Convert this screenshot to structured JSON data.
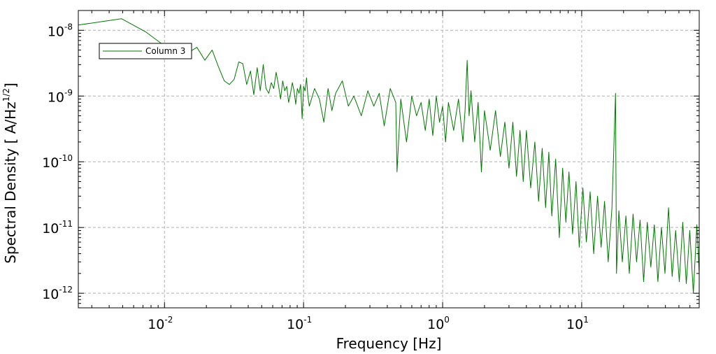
{
  "chart_data": {
    "type": "line",
    "title": "",
    "xlabel": "Frequency [Hz]",
    "ylabel_main": "Spectral Density [ A/Hz",
    "ylabel_sup": "1/2",
    "ylabel_end": "]",
    "xscale": "log",
    "yscale": "log",
    "xlim": [
      0.0024,
      70
    ],
    "ylim": [
      6e-13,
      2e-08
    ],
    "x_ticks": [
      {
        "value": 0.01,
        "base": "10",
        "exp": "-2"
      },
      {
        "value": 0.1,
        "base": "10",
        "exp": "-1"
      },
      {
        "value": 1,
        "base": "10",
        "exp": "0"
      },
      {
        "value": 10,
        "base": "10",
        "exp": "1"
      }
    ],
    "y_ticks": [
      {
        "value": 1e-08,
        "base": "10",
        "exp": "-8"
      },
      {
        "value": 1e-09,
        "base": "10",
        "exp": "-9"
      },
      {
        "value": 1e-10,
        "base": "10",
        "exp": "-10"
      },
      {
        "value": 1e-11,
        "base": "10",
        "exp": "-11"
      },
      {
        "value": 1e-12,
        "base": "10",
        "exp": "-12"
      }
    ],
    "grid": true,
    "legend_position": "top-left",
    "series": [
      {
        "name": "Column 3",
        "color": "#007800",
        "points": [
          [
            0.0024,
            1.2e-08
          ],
          [
            0.0049,
            1.5e-08
          ],
          [
            0.0073,
            9.5e-09
          ],
          [
            0.0098,
            6e-09
          ],
          [
            0.0122,
            4.8e-09
          ],
          [
            0.0146,
            4.5e-09
          ],
          [
            0.0171,
            5.5e-09
          ],
          [
            0.0195,
            3.5e-09
          ],
          [
            0.022,
            5e-09
          ],
          [
            0.0244,
            2.8e-09
          ],
          [
            0.0269,
            1.7e-09
          ],
          [
            0.0293,
            1.5e-09
          ],
          [
            0.0317,
            1.8e-09
          ],
          [
            0.0342,
            3.3e-09
          ],
          [
            0.0366,
            3.1e-09
          ],
          [
            0.039,
            1.5e-09
          ],
          [
            0.0415,
            2.4e-09
          ],
          [
            0.0439,
            1.05e-09
          ],
          [
            0.0464,
            2.7e-09
          ],
          [
            0.0488,
            1.2e-09
          ],
          [
            0.0513,
            3e-09
          ],
          [
            0.0537,
            1.3e-09
          ],
          [
            0.0562,
            1.1e-09
          ],
          [
            0.0586,
            1.6e-09
          ],
          [
            0.061,
            1.3e-09
          ],
          [
            0.0635,
            2.3e-09
          ],
          [
            0.0659,
            1.5e-09
          ],
          [
            0.0684,
            9e-10
          ],
          [
            0.0708,
            1.7e-09
          ],
          [
            0.0732,
            1.2e-09
          ],
          [
            0.0757,
            1.4e-09
          ],
          [
            0.0781,
            8e-10
          ],
          [
            0.0806,
            1.1e-09
          ],
          [
            0.083,
            1.6e-09
          ],
          [
            0.0854,
            1.2e-09
          ],
          [
            0.0879,
            7.5e-10
          ],
          [
            0.0903,
            1.3e-09
          ],
          [
            0.0928,
            1.1e-09
          ],
          [
            0.0952,
            1.5e-09
          ],
          [
            0.0977,
            4.5e-10
          ],
          [
            0.1001,
            1.4e-09
          ],
          [
            0.1025,
            1.2e-09
          ],
          [
            0.105,
            1.9e-09
          ],
          [
            0.1074,
            1e-09
          ],
          [
            0.11,
            7e-10
          ],
          [
            0.12,
            1.3e-09
          ],
          [
            0.13,
            9e-10
          ],
          [
            0.14,
            4e-10
          ],
          [
            0.15,
            1.3e-09
          ],
          [
            0.16,
            6e-10
          ],
          [
            0.17,
            1.1e-09
          ],
          [
            0.19,
            1.7e-09
          ],
          [
            0.21,
            7e-10
          ],
          [
            0.23,
            1e-09
          ],
          [
            0.26,
            5e-10
          ],
          [
            0.29,
            1.2e-09
          ],
          [
            0.32,
            7e-10
          ],
          [
            0.35,
            1.1e-09
          ],
          [
            0.38,
            3.5e-10
          ],
          [
            0.42,
            1.3e-09
          ],
          [
            0.46,
            8e-10
          ],
          [
            0.47,
            7e-11
          ],
          [
            0.5,
            9e-10
          ],
          [
            0.55,
            2e-10
          ],
          [
            0.6,
            1e-09
          ],
          [
            0.65,
            5e-10
          ],
          [
            0.7,
            8e-10
          ],
          [
            0.75,
            3e-10
          ],
          [
            0.8,
            9e-10
          ],
          [
            0.85,
            2.5e-10
          ],
          [
            0.9,
            1e-09
          ],
          [
            0.95,
            4e-10
          ],
          [
            1.0,
            7e-10
          ],
          [
            1.05,
            2e-10
          ],
          [
            1.1,
            8e-10
          ],
          [
            1.2,
            3e-10
          ],
          [
            1.3,
            9e-10
          ],
          [
            1.4,
            2e-10
          ],
          [
            1.45,
            6e-10
          ],
          [
            1.5,
            3.5e-09
          ],
          [
            1.55,
            5e-10
          ],
          [
            1.6,
            1.2e-09
          ],
          [
            1.7,
            2e-10
          ],
          [
            1.8,
            8e-10
          ],
          [
            1.9,
            7e-11
          ],
          [
            2.0,
            6e-10
          ],
          [
            2.2,
            1.5e-10
          ],
          [
            2.4,
            6e-10
          ],
          [
            2.6,
            1.2e-10
          ],
          [
            2.8,
            4e-10
          ],
          [
            3.0,
            8e-11
          ],
          [
            3.2,
            4e-10
          ],
          [
            3.4,
            6e-11
          ],
          [
            3.6,
            3e-10
          ],
          [
            3.8,
            5e-11
          ],
          [
            4.0,
            3e-10
          ],
          [
            4.3,
            4e-11
          ],
          [
            4.6,
            2e-10
          ],
          [
            4.9,
            2.5e-11
          ],
          [
            5.2,
            1.6e-10
          ],
          [
            5.5,
            2e-11
          ],
          [
            5.8,
            1.4e-10
          ],
          [
            6.1,
            1.5e-11
          ],
          [
            6.5,
            1.1e-10
          ],
          [
            6.9,
            7e-12
          ],
          [
            7.3,
            8e-11
          ],
          [
            7.7,
            1.2e-11
          ],
          [
            8.1,
            7e-11
          ],
          [
            8.6,
            8e-12
          ],
          [
            9.1,
            5e-11
          ],
          [
            9.6,
            5e-12
          ],
          [
            10.2,
            4e-11
          ],
          [
            10.8,
            6e-12
          ],
          [
            11.5,
            3.5e-11
          ],
          [
            12.2,
            4e-12
          ],
          [
            13.0,
            3e-11
          ],
          [
            13.8,
            5e-12
          ],
          [
            14.6,
            2.5e-11
          ],
          [
            15.5,
            3e-12
          ],
          [
            16.5,
            2e-11
          ],
          [
            17.5,
            1.1e-09
          ],
          [
            17.8,
            2e-12
          ],
          [
            18.5,
            1.8e-11
          ],
          [
            19.6,
            3e-12
          ],
          [
            20.8,
            1.5e-11
          ],
          [
            22.0,
            2e-12
          ],
          [
            23.4,
            1.6e-11
          ],
          [
            24.8,
            3e-12
          ],
          [
            26.3,
            1.3e-11
          ],
          [
            27.9,
            1.5e-12
          ],
          [
            29.6,
            1.2e-11
          ],
          [
            31.4,
            2.5e-12
          ],
          [
            33.3,
            1.1e-11
          ],
          [
            35.3,
            1.5e-12
          ],
          [
            37.4,
            1e-11
          ],
          [
            39.7,
            2e-12
          ],
          [
            42.1,
            2e-11
          ],
          [
            44.7,
            1.8e-12
          ],
          [
            47.4,
            9e-12
          ],
          [
            50.3,
            1.5e-12
          ],
          [
            53.3,
            1.2e-11
          ],
          [
            56.5,
            1.4e-12
          ],
          [
            59.9,
            9e-12
          ],
          [
            63.5,
            1e-12
          ],
          [
            67.3,
            1.1e-11
          ],
          [
            70,
            2e-12
          ]
        ]
      }
    ]
  }
}
